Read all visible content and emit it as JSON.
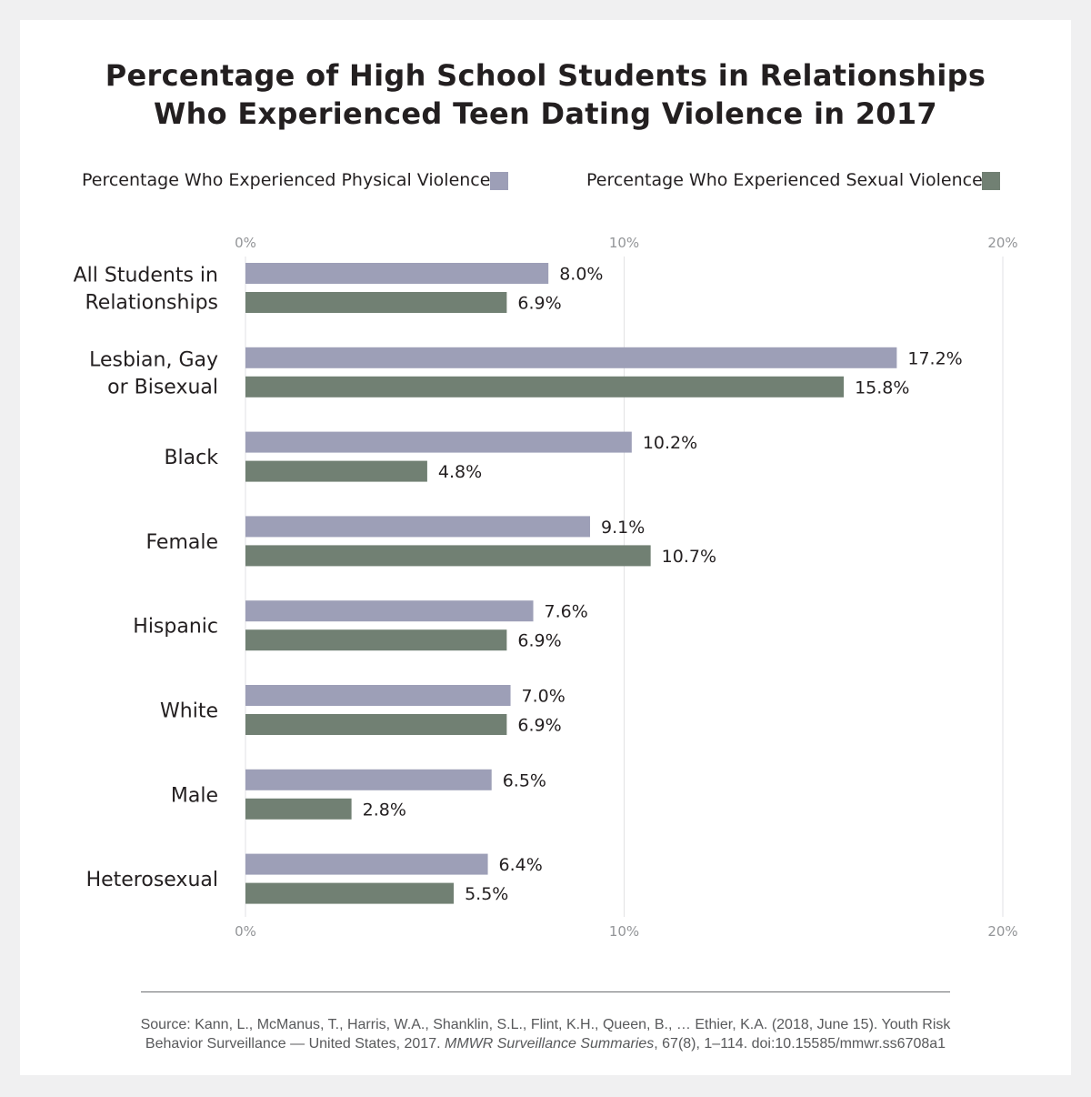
{
  "chart_data": {
    "type": "bar",
    "orientation": "horizontal",
    "title_lines": [
      "Percentage of High School Students in Relationships",
      "Who Experienced Teen Dating Violence in 2017"
    ],
    "categories": [
      [
        "All Students in",
        "Relationships"
      ],
      [
        "Lesbian, Gay",
        "or Bisexual"
      ],
      [
        "Black"
      ],
      [
        "Female"
      ],
      [
        "Hispanic"
      ],
      [
        "White"
      ],
      [
        "Male"
      ],
      [
        "Heterosexual"
      ]
    ],
    "series": [
      {
        "name": "Percentage Who Experienced Physical Violence",
        "color": "#9d9fb7",
        "values": [
          8.0,
          17.2,
          10.2,
          9.1,
          7.6,
          7.0,
          6.5,
          6.4
        ],
        "labels": [
          "8.0%",
          "17.2%",
          "10.2%",
          "9.1%",
          "7.6%",
          "7.0%",
          "6.5%",
          "6.4%"
        ]
      },
      {
        "name": "Percentage Who Experienced Sexual Violence",
        "color": "#718073",
        "values": [
          6.9,
          15.8,
          4.8,
          10.7,
          6.9,
          6.9,
          2.8,
          5.5
        ],
        "labels": [
          "6.9%",
          "15.8%",
          "4.8%",
          "10.7%",
          "6.9%",
          "6.9%",
          "2.8%",
          "5.5%"
        ]
      }
    ],
    "xlim": [
      0,
      20
    ],
    "x_ticks": [
      0,
      10,
      20
    ],
    "x_tick_labels": [
      "0%",
      "10%",
      "20%"
    ],
    "grid": true,
    "legend_position": "top"
  },
  "source": {
    "line1": "Source: Kann, L., McManus, T., Harris, W.A., Shanklin, S.L., Flint, K.H., Queen, B., … Ethier, K.A. (2018, June 15). Youth Risk",
    "line2_prefix": "Behavior Surveillance — United States, 2017. ",
    "line2_italic": "MMWR Surveillance Summaries",
    "line2_suffix": ", 67(8), 1–114. doi:10.15585/mmwr.ss6708a1"
  }
}
